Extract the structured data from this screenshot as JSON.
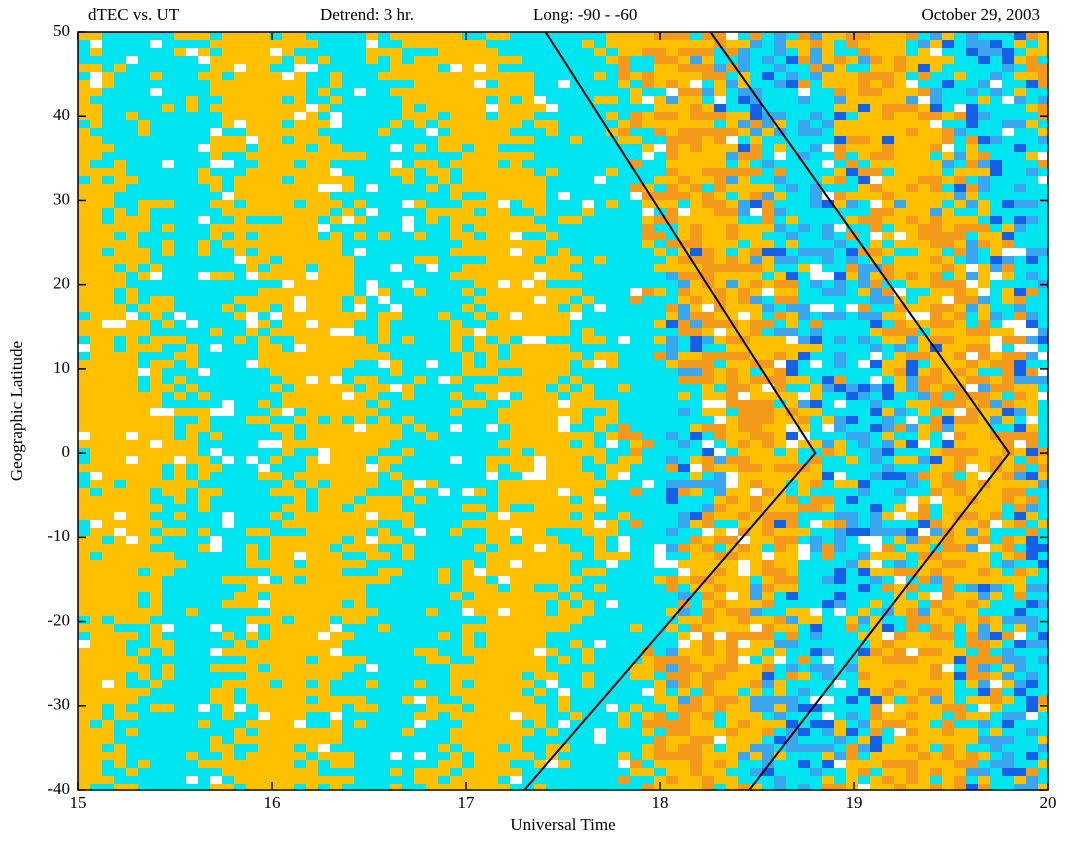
{
  "chart_data": {
    "type": "line",
    "header": [
      "dTEC vs. UT",
      "Detrend:  3 hr.",
      "Long:  -90 -  -60",
      "October 29, 2003"
    ],
    "x_label": "Universal Time",
    "y_label": "Geographic Latitude",
    "xlim": [
      15,
      20
    ],
    "ylim": [
      -40,
      50
    ],
    "xticks": [
      15,
      16,
      17,
      18,
      19,
      20
    ],
    "yticks": [
      -40,
      -30,
      -20,
      -10,
      0,
      10,
      20,
      30,
      40,
      50
    ],
    "series": [
      {
        "color": "#000000",
        "x": [
          17.41,
          18.8,
          17.3
        ],
        "values": [
          50,
          0,
          -40
        ]
      },
      {
        "color": "#000000",
        "x": [
          18.26,
          19.8,
          18.46
        ],
        "values": [
          50,
          0,
          -40
        ]
      }
    ]
  }
}
